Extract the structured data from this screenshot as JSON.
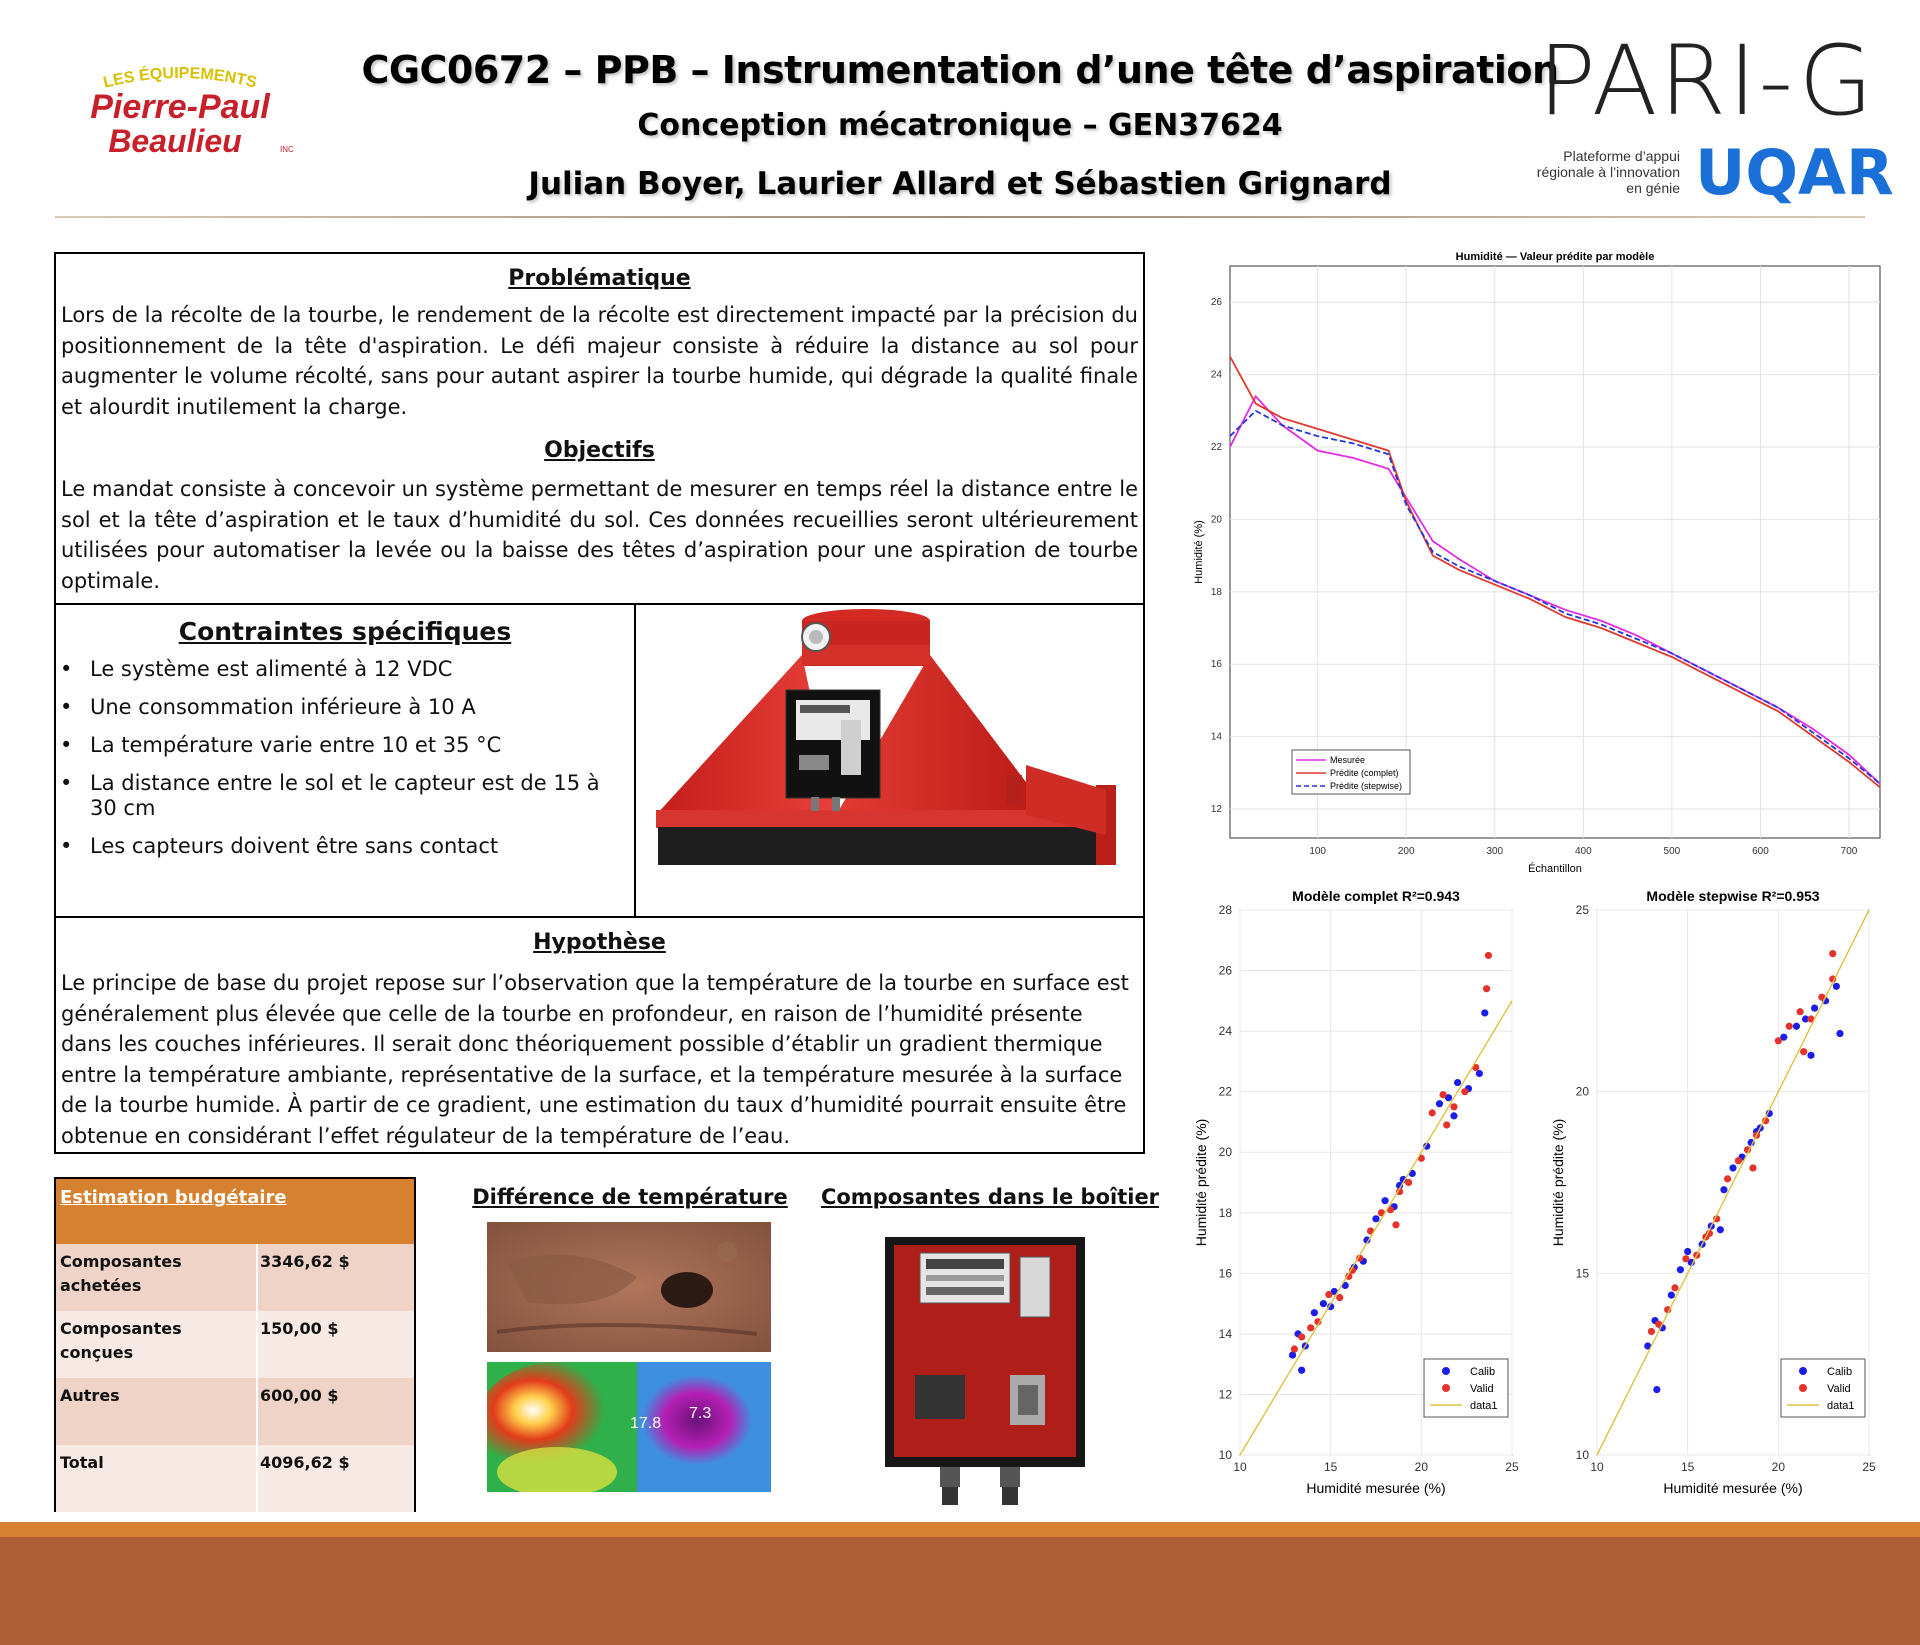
{
  "header": {
    "logo_top": "LES ÉQUIPEMENTS",
    "logo_line1": "Pierre-Paul",
    "logo_line2": "Beaulieu",
    "logo_inc": "INC",
    "title": "CGC0672 – PPB – Instrumentation d’une tête d’aspiration",
    "subtitle": "Conception mécatronique – GEN37624",
    "authors": "Julian Boyer, Laurier Allard et Sébastien Grignard",
    "pari_logo": "PARI-G",
    "pari_tagline": "Plateforme d’appui régionale à l’innovation en génie",
    "uqar_logo": "UQAR"
  },
  "problem": {
    "title": "Problématique",
    "text": "Lors de la récolte de la tourbe, le rendement de la récolte est directement impacté par la précision du positionnement de la tête d'aspiration. Le défi majeur consiste à réduire la distance au sol pour augmenter le volume récolté, sans pour autant aspirer la tourbe humide, qui dégrade la qualité finale et alourdit inutilement la charge."
  },
  "objectives": {
    "title": "Objectifs",
    "text": "Le mandat consiste à concevoir un système permettant de mesurer en temps réel la distance entre le sol et la tête d’aspiration et le taux d’humidité du sol. Ces données recueillies seront ultérieurement utilisées pour automatiser la levée ou la baisse des têtes d’aspiration pour une aspiration de tourbe optimale."
  },
  "constraints": {
    "title": "Contraintes spécifiques",
    "items": [
      "Le système est alimenté à 12 VDC",
      "Une consommation inférieure à 10 A",
      "La température varie entre 10 et 35 °C",
      "La distance entre le sol et le capteur est de 15 à 30 cm",
      "Les capteurs doivent être sans contact"
    ]
  },
  "hypothesis": {
    "title": "Hypothèse",
    "text": "Le principe de base du projet repose sur l’observation que la température de la tourbe en surface est généralement plus élevée que celle de la tourbe en profondeur, en raison de l’humidité présente dans les couches inférieures. Il serait donc théoriquement possible d’établir un gradient thermique entre la température ambiante, représentative de la surface, et la température mesurée à la surface de la tourbe humide. À partir de ce gradient, une estimation du taux d’humidité pourrait ensuite être obtenue en considérant l’effet régulateur de la température de l’eau."
  },
  "budget": {
    "title": "Estimation budgétaire",
    "rows": [
      {
        "label": "Composantes achetées",
        "value": "3346,62 $"
      },
      {
        "label": "Composantes conçues",
        "value": "150,00 $"
      },
      {
        "label": "Autres",
        "value": "600,00 $"
      },
      {
        "label": "Total",
        "value": "4096,62 $"
      }
    ],
    "colors": {
      "header": "#d6812f",
      "row_dark": "#efd3c7",
      "row_light": "#f7e9e4"
    }
  },
  "temperature": {
    "title": "Différence de température",
    "label_warm": "17.8",
    "label_cold": "7.3"
  },
  "components": {
    "title": "Composantes dans le boîtier"
  },
  "chart_data": [
    {
      "type": "line",
      "title": "Humidité — Valeur prédite par modèle",
      "xlabel": "Échantillon",
      "ylabel": "Humidité (%)",
      "xlim": [
        1,
        735
      ],
      "ylim": [
        11.2,
        27
      ],
      "xticks": [
        100,
        200,
        300,
        400,
        500,
        600,
        700
      ],
      "yticks": [
        12,
        14,
        16,
        18,
        20,
        22,
        24,
        26
      ],
      "grid": true,
      "legend_position": "bottom-left",
      "series": [
        {
          "name": "Mesurée",
          "color": "#e32de3",
          "style": "solid",
          "x": [
            1,
            30,
            60,
            100,
            140,
            180,
            200,
            230,
            260,
            300,
            340,
            380,
            420,
            460,
            500,
            540,
            580,
            620,
            660,
            700,
            735
          ],
          "y": [
            22.0,
            23.4,
            22.6,
            21.9,
            21.7,
            21.4,
            20.6,
            19.4,
            18.9,
            18.3,
            17.9,
            17.5,
            17.2,
            16.8,
            16.3,
            15.8,
            15.3,
            14.8,
            14.2,
            13.5,
            12.7
          ]
        },
        {
          "name": "Prédite (complet)",
          "color": "#e03a2f",
          "style": "solid",
          "x": [
            1,
            30,
            60,
            100,
            140,
            180,
            200,
            230,
            260,
            300,
            340,
            380,
            420,
            460,
            500,
            540,
            580,
            620,
            660,
            700,
            735
          ],
          "y": [
            24.5,
            23.2,
            22.8,
            22.5,
            22.2,
            21.9,
            20.5,
            19.0,
            18.6,
            18.2,
            17.8,
            17.3,
            17.0,
            16.6,
            16.2,
            15.7,
            15.2,
            14.7,
            14.0,
            13.3,
            12.6
          ]
        },
        {
          "name": "Prédite (stepwise)",
          "color": "#2438d8",
          "style": "dashed",
          "x": [
            1,
            30,
            60,
            100,
            140,
            180,
            200,
            230,
            260,
            300,
            340,
            380,
            420,
            460,
            500,
            540,
            580,
            620,
            660,
            700,
            735
          ],
          "y": [
            22.3,
            23.0,
            22.6,
            22.3,
            22.1,
            21.8,
            20.4,
            19.1,
            18.7,
            18.3,
            17.9,
            17.4,
            17.1,
            16.7,
            16.3,
            15.8,
            15.3,
            14.8,
            14.1,
            13.4,
            12.7
          ]
        }
      ]
    },
    {
      "type": "scatter",
      "title": "Modèle complet  R²=0.943",
      "xlabel": "Humidité mesurée (%)",
      "ylabel": "Humidité prédite (%)",
      "xlim": [
        10,
        25
      ],
      "ylim": [
        10,
        28
      ],
      "xticks": [
        10,
        15,
        20,
        25
      ],
      "yticks": [
        10,
        12,
        14,
        16,
        18,
        20,
        22,
        24,
        26,
        28
      ],
      "legend_position": "bottom-right",
      "identity_line": true,
      "series": [
        {
          "name": "Calib",
          "color": "#1b1ee8",
          "x": [
            12.9,
            13.2,
            13.6,
            14.1,
            14.6,
            15.2,
            15.8,
            16.3,
            17.0,
            17.5,
            18.0,
            18.5,
            19.0,
            19.5,
            20.3,
            21.0,
            21.5,
            22.0,
            22.6,
            23.2,
            13.4,
            15.0,
            16.8,
            18.8,
            21.8,
            23.5
          ],
          "y": [
            13.3,
            14.0,
            13.6,
            14.7,
            15.0,
            15.4,
            15.6,
            16.2,
            17.1,
            17.8,
            18.4,
            18.2,
            19.1,
            19.3,
            20.2,
            21.6,
            21.8,
            22.3,
            22.1,
            22.6,
            12.8,
            14.9,
            16.4,
            18.9,
            21.2,
            24.6
          ]
        },
        {
          "name": "Valid",
          "color": "#e6322c",
          "x": [
            13.0,
            13.4,
            13.9,
            14.3,
            14.9,
            15.5,
            16.0,
            16.6,
            17.2,
            17.8,
            18.3,
            18.8,
            19.3,
            20.0,
            20.6,
            21.2,
            21.8,
            22.4,
            23.0,
            23.6,
            23.7,
            16.2,
            18.6,
            21.4
          ],
          "y": [
            13.5,
            13.9,
            14.2,
            14.4,
            15.3,
            15.2,
            15.9,
            16.5,
            17.4,
            18.0,
            18.1,
            18.7,
            19.0,
            19.8,
            21.3,
            21.9,
            21.5,
            22.0,
            22.8,
            25.4,
            26.5,
            16.1,
            17.6,
            20.9
          ]
        },
        {
          "name": "data1",
          "color": "#e0c040",
          "line": true,
          "x": [
            10,
            25
          ],
          "y": [
            10,
            25
          ]
        }
      ]
    },
    {
      "type": "scatter",
      "title": "Modèle stepwise  R²=0.953",
      "xlabel": "Humidité mesurée (%)",
      "ylabel": "Humidité prédite (%)",
      "xlim": [
        10,
        25
      ],
      "ylim": [
        10,
        25
      ],
      "xticks": [
        10,
        15,
        20,
        25
      ],
      "yticks": [
        10,
        15,
        20,
        25
      ],
      "legend_position": "bottom-right",
      "identity_line": true,
      "series": [
        {
          "name": "Calib",
          "color": "#1b1ee8",
          "x": [
            12.8,
            13.2,
            13.6,
            14.1,
            14.6,
            15.2,
            15.8,
            16.3,
            17.0,
            17.5,
            18.0,
            18.5,
            19.0,
            19.5,
            20.3,
            21.0,
            21.5,
            22.0,
            22.6,
            23.2,
            13.3,
            15.0,
            16.8,
            18.8,
            21.8,
            23.4
          ],
          "y": [
            13.0,
            13.7,
            13.5,
            14.4,
            15.1,
            15.3,
            15.8,
            16.3,
            17.3,
            17.9,
            18.2,
            18.6,
            19.0,
            19.4,
            21.5,
            21.8,
            22.0,
            22.3,
            22.5,
            22.9,
            11.8,
            15.6,
            16.2,
            18.9,
            21.0,
            21.6
          ]
        },
        {
          "name": "Valid",
          "color": "#e6322c",
          "x": [
            13.0,
            13.4,
            13.9,
            14.3,
            14.9,
            15.5,
            16.0,
            16.6,
            17.2,
            17.8,
            18.3,
            18.8,
            19.3,
            20.0,
            20.6,
            21.2,
            21.8,
            22.4,
            23.0,
            23.0,
            16.2,
            18.6,
            21.4
          ],
          "y": [
            13.4,
            13.6,
            14.0,
            14.6,
            15.4,
            15.5,
            16.0,
            16.5,
            17.6,
            18.1,
            18.4,
            18.8,
            19.2,
            21.4,
            21.8,
            22.2,
            22.0,
            22.6,
            23.1,
            23.8,
            16.1,
            17.9,
            21.1
          ]
        },
        {
          "name": "data1",
          "color": "#e0c040",
          "line": true,
          "x": [
            10,
            25
          ],
          "y": [
            10,
            25
          ]
        }
      ]
    }
  ]
}
